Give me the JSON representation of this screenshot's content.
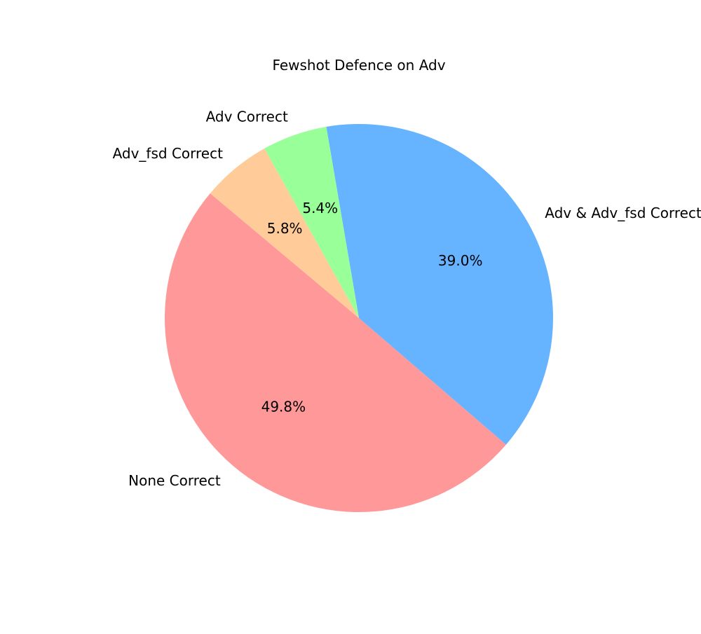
{
  "chart_data": {
    "type": "pie",
    "title": "Fewshot Defence on Adv",
    "slices": [
      {
        "label": "None Correct",
        "value": 49.8,
        "pct_label": "49.8%",
        "color": "#ff9999"
      },
      {
        "label": "Adv & Adv_fsd Correct",
        "value": 39.0,
        "pct_label": "39.0%",
        "color": "#66b3ff"
      },
      {
        "label": "Adv Correct",
        "value": 5.4,
        "pct_label": "5.4%",
        "color": "#99ff99"
      },
      {
        "label": "Adv_fsd Correct",
        "value": 5.8,
        "pct_label": "5.8%",
        "color": "#ffcc99"
      }
    ],
    "start_angle_deg": 140,
    "direction": "counterclockwise",
    "legend": "none"
  }
}
